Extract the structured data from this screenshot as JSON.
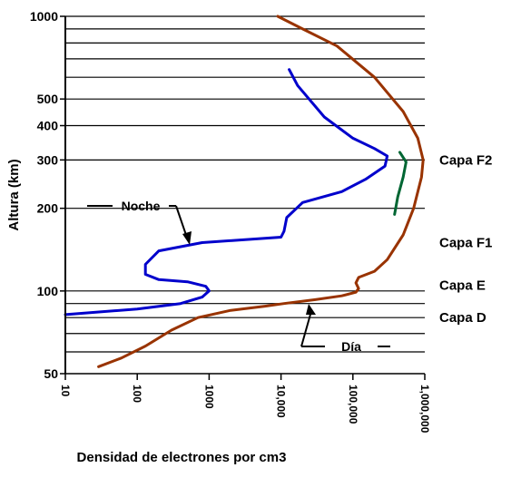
{
  "chart_data": {
    "type": "line",
    "title": "",
    "xlabel": "Densidad de electrones por cm3",
    "ylabel": "Altura (km)",
    "x_scale": "log",
    "y_scale": "log",
    "xlim": [
      10,
      1000000
    ],
    "ylim": [
      50,
      1000
    ],
    "x_ticks": [
      {
        "value": 10,
        "label": "10"
      },
      {
        "value": 100,
        "label": "100"
      },
      {
        "value": 1000,
        "label": "1000"
      },
      {
        "value": 10000,
        "label": "10,000"
      },
      {
        "value": 100000,
        "label": "100,000"
      },
      {
        "value": 1000000,
        "label": "1,000,000"
      }
    ],
    "y_ticks": [
      {
        "value": 50,
        "label": "50"
      },
      {
        "value": 100,
        "label": "100"
      },
      {
        "value": 200,
        "label": "200"
      },
      {
        "value": 300,
        "label": "300"
      },
      {
        "value": 400,
        "label": "400"
      },
      {
        "value": 500,
        "label": "500"
      },
      {
        "value": 1000,
        "label": "1000"
      }
    ],
    "grid": "horizontal",
    "layer_labels": [
      {
        "label": "Capa F2",
        "y": 300
      },
      {
        "label": "Capa F1",
        "y": 150
      },
      {
        "label": "Capa E",
        "y": 105
      },
      {
        "label": "Capa D",
        "y": 80
      }
    ],
    "annotations": [
      {
        "label": "Noche",
        "series": "night"
      },
      {
        "label": "Día",
        "series": "day"
      }
    ],
    "series": [
      {
        "key": "day",
        "color": "#993300",
        "points": [
          [
            29,
            53
          ],
          [
            60,
            57
          ],
          [
            130,
            63
          ],
          [
            300,
            72
          ],
          [
            700,
            80
          ],
          [
            2000,
            85
          ],
          [
            6000,
            88
          ],
          [
            11000,
            90
          ],
          [
            30000,
            93
          ],
          [
            70000,
            96
          ],
          [
            110000,
            99
          ],
          [
            120000,
            102
          ],
          [
            110000,
            107
          ],
          [
            120000,
            112
          ],
          [
            200000,
            118
          ],
          [
            300000,
            130
          ],
          [
            500000,
            160
          ],
          [
            700000,
            200
          ],
          [
            900000,
            260
          ],
          [
            950000,
            300
          ],
          [
            800000,
            360
          ],
          [
            500000,
            450
          ],
          [
            200000,
            600
          ],
          [
            60000,
            780
          ],
          [
            20000,
            900
          ],
          [
            9000,
            1000
          ]
        ]
      },
      {
        "key": "night",
        "color": "#0000cc",
        "points": [
          [
            10,
            82
          ],
          [
            100,
            86
          ],
          [
            400,
            90
          ],
          [
            800,
            95
          ],
          [
            1000,
            100
          ],
          [
            900,
            104
          ],
          [
            500,
            108
          ],
          [
            200,
            110
          ],
          [
            130,
            115
          ],
          [
            130,
            125
          ],
          [
            200,
            140
          ],
          [
            800,
            150
          ],
          [
            10000,
            157
          ],
          [
            11000,
            165
          ],
          [
            12000,
            185
          ],
          [
            20000,
            210
          ],
          [
            70000,
            230
          ],
          [
            150000,
            255
          ],
          [
            280000,
            285
          ],
          [
            300000,
            310
          ],
          [
            200000,
            330
          ],
          [
            100000,
            360
          ],
          [
            40000,
            430
          ],
          [
            17000,
            560
          ],
          [
            13000,
            640
          ]
        ]
      },
      {
        "key": "f2-detail",
        "color": "#006633",
        "points": [
          [
            450000,
            320
          ],
          [
            550000,
            295
          ],
          [
            500000,
            260
          ],
          [
            420000,
            220
          ],
          [
            380000,
            190
          ]
        ]
      }
    ]
  }
}
